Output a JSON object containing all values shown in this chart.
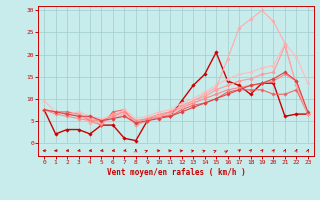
{
  "xlabel": "Vent moyen/en rafales ( km/h )",
  "xlim": [
    -0.5,
    23.5
  ],
  "ylim": [
    -3,
    31
  ],
  "yticks": [
    0,
    5,
    10,
    15,
    20,
    25,
    30
  ],
  "xticks": [
    0,
    1,
    2,
    3,
    4,
    5,
    6,
    7,
    8,
    9,
    10,
    11,
    12,
    13,
    14,
    15,
    16,
    17,
    18,
    19,
    20,
    21,
    22,
    23
  ],
  "background_color": "#c8ecec",
  "grid_color": "#a0cccc",
  "series": [
    {
      "x": [
        0,
        1,
        2,
        3,
        4,
        5,
        6,
        7,
        8,
        9,
        10,
        11,
        12,
        13,
        14,
        15,
        16,
        17,
        18,
        19,
        20,
        21,
        22,
        23
      ],
      "y": [
        7.5,
        2,
        3,
        3,
        2,
        4,
        4,
        1,
        0.5,
        5,
        6,
        6,
        9.5,
        13,
        15.5,
        20.5,
        14,
        13,
        11,
        13.5,
        13.5,
        6,
        6.5,
        6.5
      ],
      "color": "#cc0000",
      "linewidth": 1.0,
      "marker": "D",
      "markersize": 1.8
    },
    {
      "x": [
        0,
        1,
        2,
        3,
        4,
        5,
        6,
        7,
        8,
        9,
        10,
        11,
        12,
        13,
        14,
        15,
        16,
        17,
        18,
        19,
        20,
        21,
        22,
        23
      ],
      "y": [
        7.5,
        7,
        7,
        6.5,
        5,
        4,
        7,
        7.5,
        4,
        5,
        6,
        6,
        7.5,
        8.5,
        9,
        10,
        11.5,
        12,
        12,
        12,
        11,
        11,
        12,
        6.5
      ],
      "color": "#ee6666",
      "linewidth": 0.8,
      "marker": "D",
      "markersize": 1.8
    },
    {
      "x": [
        0,
        1,
        2,
        3,
        4,
        5,
        6,
        7,
        8,
        9,
        10,
        11,
        12,
        13,
        14,
        15,
        16,
        17,
        18,
        19,
        20,
        21,
        22,
        23
      ],
      "y": [
        7.5,
        7,
        6.5,
        6,
        5.5,
        5,
        6.5,
        7,
        4.5,
        5.5,
        6.5,
        7,
        8.5,
        9.5,
        10.5,
        12,
        13,
        14,
        14.5,
        15.5,
        16,
        22,
        13,
        6.5
      ],
      "color": "#ff9999",
      "linewidth": 0.8,
      "marker": "D",
      "markersize": 1.8
    },
    {
      "x": [
        0,
        1,
        2,
        3,
        4,
        5,
        6,
        7,
        8,
        9,
        10,
        11,
        12,
        13,
        14,
        15,
        16,
        17,
        18,
        19,
        20,
        21,
        22,
        23
      ],
      "y": [
        9.5,
        7,
        6.5,
        7,
        6,
        5.5,
        6,
        7.5,
        5.5,
        6,
        7,
        7.5,
        9,
        10,
        11.5,
        13,
        14.5,
        15.5,
        16,
        17,
        17.5,
        22.5,
        19.5,
        13.5
      ],
      "color": "#ffbbbb",
      "linewidth": 0.8,
      "marker": "D",
      "markersize": 1.8
    },
    {
      "x": [
        0,
        1,
        2,
        3,
        4,
        5,
        6,
        7,
        8,
        9,
        10,
        11,
        12,
        13,
        14,
        15,
        16,
        17,
        18,
        19,
        20,
        21,
        22,
        23
      ],
      "y": [
        7.5,
        6.5,
        6,
        5.5,
        5,
        5,
        6,
        7,
        5,
        5.5,
        6,
        7,
        8,
        9,
        10,
        11,
        12,
        12.5,
        13,
        13.5,
        14,
        15.5,
        14,
        6.5
      ],
      "color": "#ff8888",
      "linewidth": 0.8,
      "marker": "D",
      "markersize": 1.8
    },
    {
      "x": [
        0,
        1,
        2,
        3,
        4,
        5,
        6,
        7,
        8,
        9,
        10,
        11,
        12,
        13,
        14,
        15,
        16,
        17,
        18,
        19,
        20,
        21,
        22,
        23
      ],
      "y": [
        7.5,
        7,
        6.5,
        6.5,
        4.5,
        4.5,
        5.5,
        6.5,
        4,
        5,
        6,
        6.5,
        8,
        9.5,
        11,
        12.5,
        19,
        26,
        28,
        30,
        27.5,
        22.5,
        13,
        6.5
      ],
      "color": "#ffaaaa",
      "linewidth": 0.8,
      "marker": "D",
      "markersize": 1.8
    },
    {
      "x": [
        0,
        1,
        2,
        3,
        4,
        5,
        6,
        7,
        8,
        9,
        10,
        11,
        12,
        13,
        14,
        15,
        16,
        17,
        18,
        19,
        20,
        21,
        22,
        23
      ],
      "y": [
        7.5,
        7,
        6.5,
        6,
        6,
        5,
        5.5,
        6,
        4.5,
        5,
        5.5,
        6,
        7,
        8,
        9,
        10,
        11,
        12,
        13,
        13.5,
        14.5,
        16,
        14,
        7
      ],
      "color": "#dd4444",
      "linewidth": 0.8,
      "marker": "D",
      "markersize": 1.8
    }
  ],
  "arrow_color": "#cc0000",
  "arrow_angles": [
    270,
    260,
    250,
    245,
    250,
    248,
    248,
    242,
    0,
    50,
    85,
    80,
    70,
    60,
    55,
    45,
    35,
    25,
    20,
    18,
    15,
    12,
    10,
    10
  ]
}
